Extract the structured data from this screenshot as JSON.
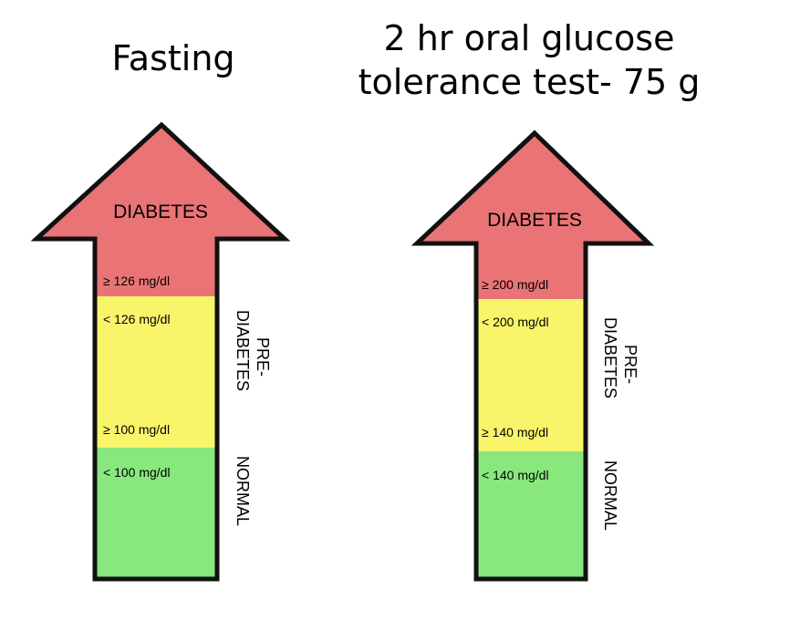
{
  "colors": {
    "diabetes": "#ea7475",
    "prediabetes": "#f9f56b",
    "normal": "#88e87e",
    "outline": "#111111"
  },
  "charts": [
    {
      "title_lines": [
        "Fasting"
      ],
      "top_label": "DIABETES",
      "diabetes_threshold": "≥ 126 mg/dl",
      "prediabetes_upper": "< 126 mg/dl",
      "prediabetes_lower": "≥ 100 mg/dl",
      "normal_upper": "< 100 mg/dl",
      "side_prediabetes_lines": [
        "PRE-",
        "DIABETES"
      ],
      "side_normal": "NORMAL"
    },
    {
      "title_lines": [
        "2 hr oral glucose",
        "tolerance test- 75 g"
      ],
      "top_label": "DIABETES",
      "diabetes_threshold": "≥ 200 mg/dl",
      "prediabetes_upper": "< 200 mg/dl",
      "prediabetes_lower": "≥ 140 mg/dl",
      "normal_upper": "< 140 mg/dl",
      "side_prediabetes_lines": [
        "PRE-",
        "DIABETES"
      ],
      "side_normal": "NORMAL"
    }
  ]
}
